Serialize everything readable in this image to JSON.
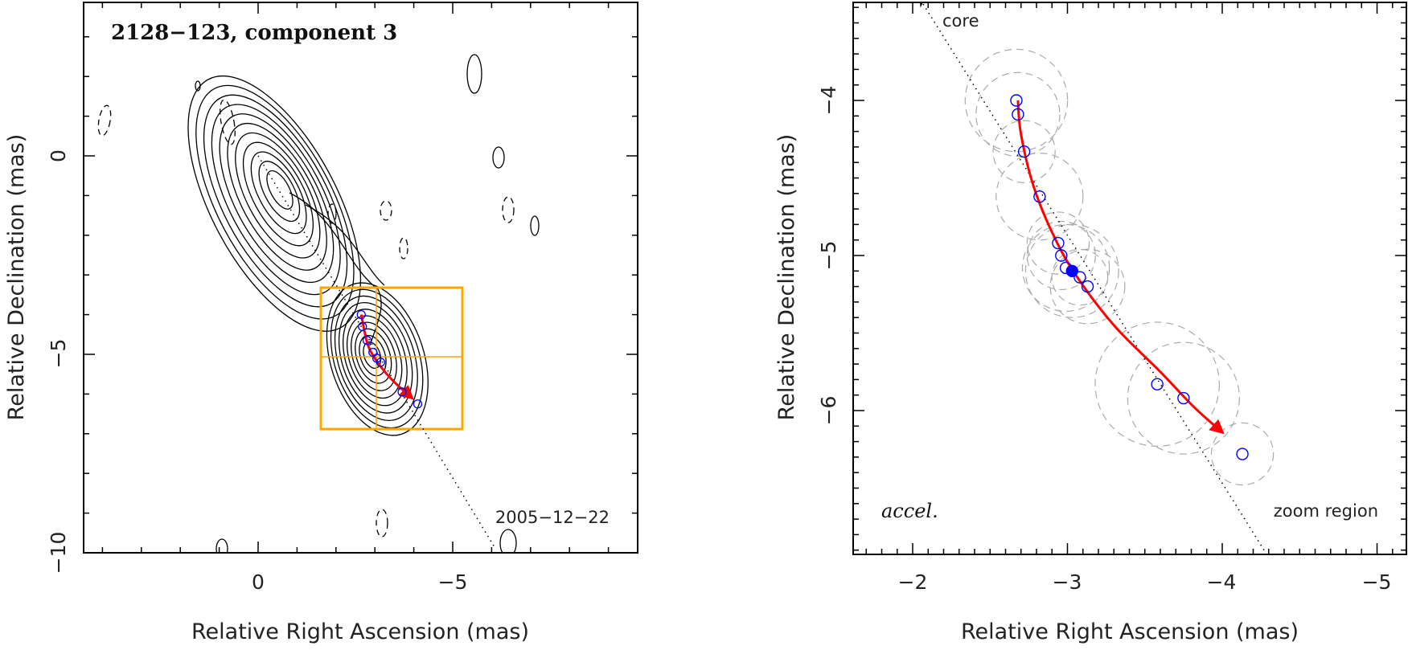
{
  "chart_data": [
    {
      "type": "scatter",
      "subtype": "radio-map-contour",
      "title": "2128−123, component 3",
      "epoch_label": "2005−12−22",
      "xlabel": "Relative Right Ascension (mas)",
      "ylabel": "Relative Declination (mas)",
      "xlim": [
        4.4,
        -9.6
      ],
      "ylim": [
        -10,
        3.9
      ],
      "x_reversed": true,
      "x_ticks": [
        0,
        -5
      ],
      "x_tick_labels": [
        "0",
        "−5"
      ],
      "y_ticks": [
        0,
        -5,
        -10
      ],
      "y_tick_labels": [
        "0",
        "−5",
        "−10"
      ],
      "grid": false,
      "colors": {
        "contour": "#000000",
        "trajectory": "#ff0000",
        "component_markers": "#0000ff",
        "zoom_box": "#ffa500"
      },
      "contour_peaks": [
        {
          "x": -0.5,
          "y": -1.0
        },
        {
          "x": -2.9,
          "y": -5.0
        }
      ],
      "zoom_box": {
        "x_range": [
          -1.6,
          -5.2
        ],
        "y_range": [
          -3.35,
          -6.95
        ],
        "center": [
          -3.0,
          -5.1
        ]
      },
      "jet_axis": {
        "from": [
          0,
          0
        ],
        "to": [
          -6.1,
          -9.9
        ]
      },
      "component_positions": [
        {
          "x": -2.65,
          "y": -4.0
        },
        {
          "x": -2.68,
          "y": -4.3
        },
        {
          "x": -2.8,
          "y": -4.65
        },
        {
          "x": -2.95,
          "y": -4.95
        },
        {
          "x": -3.05,
          "y": -5.1
        },
        {
          "x": -3.15,
          "y": -5.2
        },
        {
          "x": -3.7,
          "y": -5.95
        },
        {
          "x": -4.1,
          "y": -6.25
        }
      ],
      "trajectory": [
        [
          -2.65,
          -4.0
        ],
        [
          -2.8,
          -4.7
        ],
        [
          -3.0,
          -5.1
        ],
        [
          -3.4,
          -5.6
        ],
        [
          -3.95,
          -6.1
        ]
      ]
    },
    {
      "type": "scatter",
      "subtype": "zoomed-trajectory",
      "xlabel": "Relative Right Ascension (mas)",
      "ylabel": "Relative Declination (mas)",
      "annotations": [
        "core",
        "zoom region",
        "accel."
      ],
      "xlim": [
        -1.62,
        -5.22
      ],
      "ylim": [
        -6.9,
        -3.35
      ],
      "x_reversed": true,
      "x_ticks": [
        -2,
        -3,
        -4,
        -5
      ],
      "x_tick_labels": [
        "−2",
        "−3",
        "−4",
        "−5"
      ],
      "y_ticks": [
        -4,
        -5,
        -6
      ],
      "y_tick_labels": [
        "−4",
        "−5",
        "−6"
      ],
      "grid": false,
      "colors": {
        "trajectory": "#ff0000",
        "component_markers": "#0000ff",
        "component_size_circles": "#aaaaaa",
        "jet_axis": "#000000"
      },
      "jet_axis": {
        "from": [
          -2.05,
          -3.35
        ],
        "to": [
          -4.27,
          -6.9
        ]
      },
      "component_positions": [
        {
          "x": -2.67,
          "y": -4.0,
          "size": 0.33
        },
        {
          "x": -2.68,
          "y": -4.09,
          "size": 0.27
        },
        {
          "x": -2.72,
          "y": -4.33,
          "size": 0.2
        },
        {
          "x": -2.82,
          "y": -4.62,
          "size": 0.28
        },
        {
          "x": -2.94,
          "y": -4.92,
          "size": 0.2
        },
        {
          "x": -2.96,
          "y": -5.0,
          "size": 0.22
        },
        {
          "x": -2.99,
          "y": -5.08,
          "size": 0.28
        },
        {
          "x": -3.03,
          "y": -5.1,
          "size": 0.3,
          "filled": true
        },
        {
          "x": -3.08,
          "y": -5.14,
          "size": 0.18
        },
        {
          "x": -3.13,
          "y": -5.2,
          "size": 0.24
        },
        {
          "x": -3.58,
          "y": -5.83,
          "size": 0.4
        },
        {
          "x": -3.75,
          "y": -5.92,
          "size": 0.36
        },
        {
          "x": -4.13,
          "y": -6.28,
          "size": 0.2
        }
      ],
      "trajectory": [
        [
          -2.68,
          -4.0
        ],
        [
          -2.7,
          -4.22
        ],
        [
          -2.78,
          -4.55
        ],
        [
          -2.9,
          -4.85
        ],
        [
          -3.05,
          -5.12
        ],
        [
          -3.3,
          -5.45
        ],
        [
          -3.6,
          -5.75
        ],
        [
          -3.82,
          -5.98
        ],
        [
          -4.0,
          -6.14
        ]
      ]
    }
  ]
}
